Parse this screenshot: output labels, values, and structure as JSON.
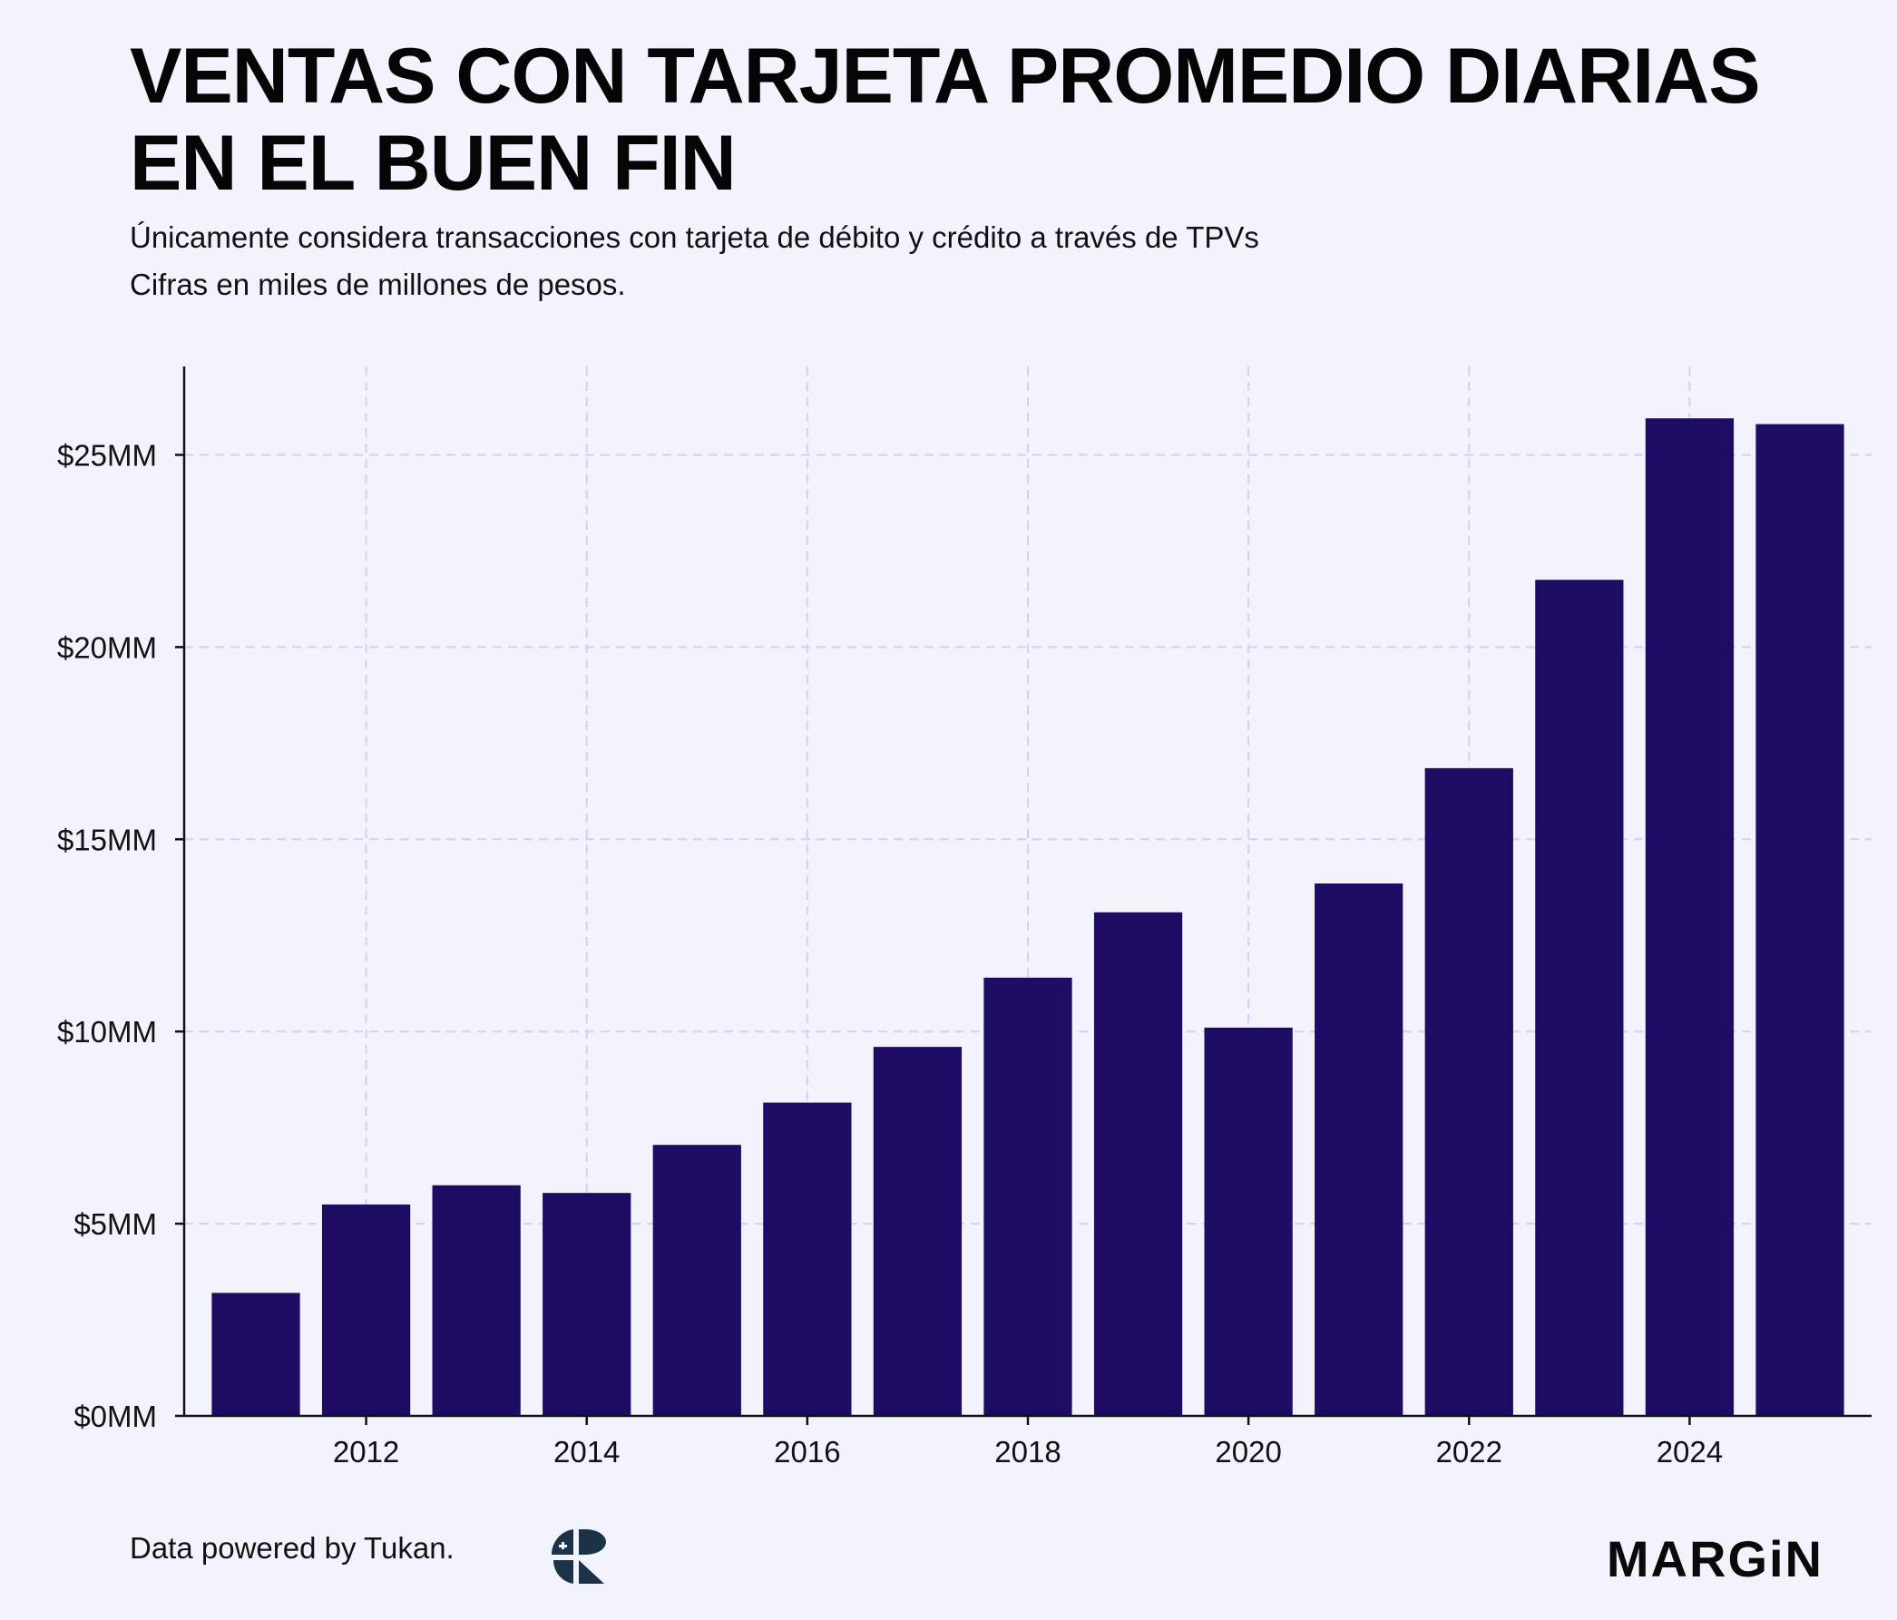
{
  "header": {
    "title_line1": "VENTAS CON TARJETA PROMEDIO DIARIAS",
    "title_line2": "EN EL BUEN FIN",
    "subtitle_line1": "Únicamente considera transacciones con tarjeta de débito y crédito a través de TPVs",
    "subtitle_line2": "Cifras en miles de millones de pesos."
  },
  "chart_data": {
    "type": "bar",
    "title": "VENTAS CON TARJETA PROMEDIO DIARIAS EN EL BUEN FIN",
    "xlabel": "",
    "ylabel": "",
    "categories": [
      2011,
      2012,
      2013,
      2014,
      2015,
      2016,
      2017,
      2018,
      2019,
      2020,
      2021,
      2022,
      2023,
      2024,
      2025
    ],
    "values": [
      3.2,
      5.5,
      6.0,
      5.8,
      7.05,
      8.15,
      9.6,
      11.4,
      13.1,
      10.1,
      13.85,
      16.85,
      21.75,
      25.95,
      25.8
    ],
    "ylim": [
      0,
      27.3
    ],
    "xlim": [
      2010.35,
      2025.65
    ],
    "y_ticks": [
      0,
      5,
      10,
      15,
      20,
      25
    ],
    "y_tick_labels": [
      "$0MM",
      "$5MM",
      "$10MM",
      "$15MM",
      "$20MM",
      "$25MM"
    ],
    "x_ticks": [
      2012,
      2014,
      2016,
      2018,
      2020,
      2022,
      2024
    ],
    "x_tick_labels": [
      "2012",
      "2014",
      "2016",
      "2018",
      "2020",
      "2022",
      "2024"
    ],
    "grid": true,
    "bar_color": "#1e0b63",
    "grid_color": "#cfd2f5",
    "background": "#f3f3fe"
  },
  "footer": {
    "credit": "Data powered by Tukan.",
    "brand": "MARGiN",
    "tukan_logo_icon": "tukan-logo-icon"
  },
  "colors": {
    "background": "#f3f3fe",
    "text": "#0a0a0a",
    "accent": "#1e0b63",
    "logo": "#1c3347"
  }
}
